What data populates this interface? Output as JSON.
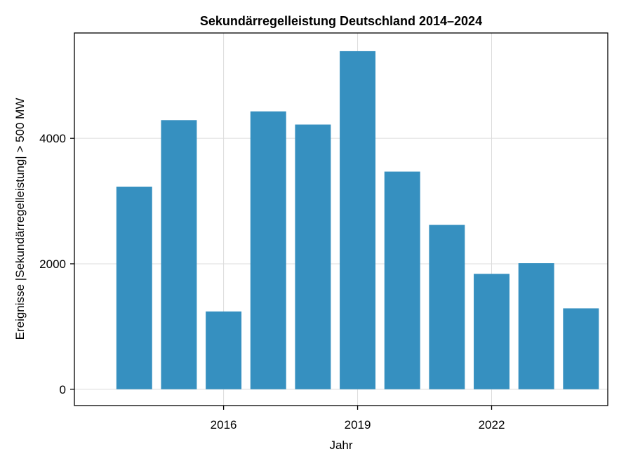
{
  "chart_data": {
    "type": "bar",
    "title": "Sekundärregelleistung Deutschland 2014–2024",
    "xlabel": "Jahr",
    "ylabel": "Ereignisse |Sekundärregelleistung| > 500 MW",
    "x": [
      2014,
      2015,
      2016,
      2017,
      2018,
      2019,
      2020,
      2021,
      2022,
      2023,
      2024
    ],
    "values": [
      3230,
      4290,
      1240,
      4430,
      4220,
      5390,
      3470,
      2620,
      1840,
      2010,
      1290
    ],
    "xticks": [
      2016,
      2019,
      2022
    ],
    "yticks": [
      0,
      2000,
      4000
    ],
    "xlim": [
      2012.66,
      2024.6
    ],
    "ylim": [
      -260,
      5680
    ],
    "grid": true,
    "bar_color": "#3690c0"
  }
}
